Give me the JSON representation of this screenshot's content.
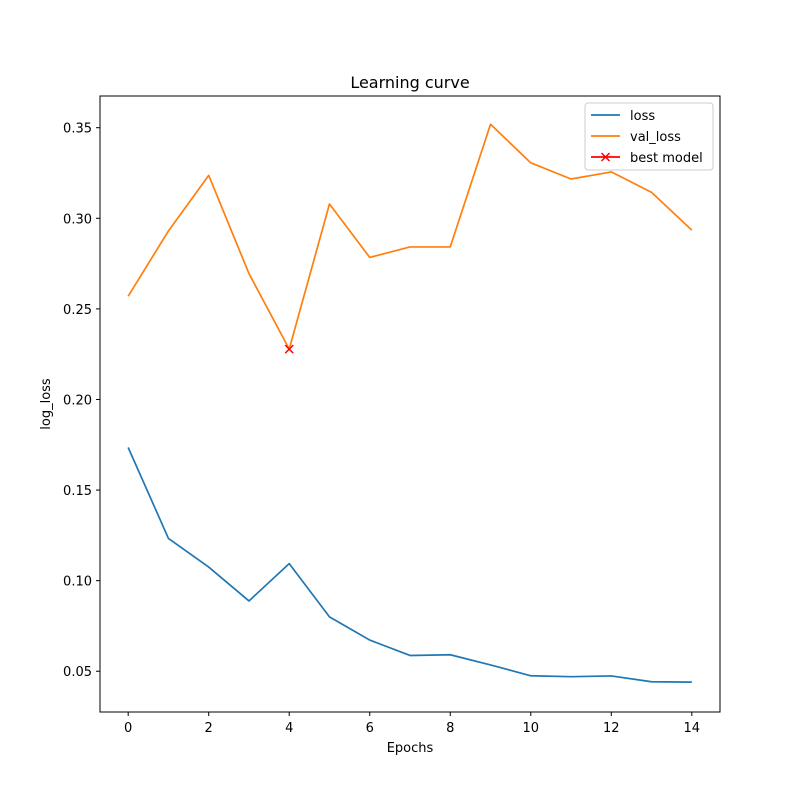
{
  "chart_data": {
    "type": "line",
    "title": "Learning curve",
    "xlabel": "Epochs",
    "ylabel": "log_loss",
    "xlim": [
      -0.7,
      14.7
    ],
    "ylim": [
      0.0275,
      0.3675
    ],
    "xticks": [
      0,
      2,
      4,
      6,
      8,
      10,
      12,
      14
    ],
    "xtick_labels": [
      "0",
      "2",
      "4",
      "6",
      "8",
      "10",
      "12",
      "14"
    ],
    "yticks": [
      0.05,
      0.1,
      0.15,
      0.2,
      0.25,
      0.3,
      0.35
    ],
    "ytick_labels": [
      "0.05",
      "0.10",
      "0.15",
      "0.20",
      "0.25",
      "0.30",
      "0.35"
    ],
    "grid": false,
    "legend_position": "top-right",
    "x": [
      0,
      1,
      2,
      3,
      4,
      5,
      6,
      7,
      8,
      9,
      10,
      11,
      12,
      13,
      14
    ],
    "series": [
      {
        "name": "loss",
        "color": "#1f77b4",
        "values": [
          0.1735,
          0.1233,
          0.1075,
          0.0888,
          0.1094,
          0.08,
          0.0672,
          0.0587,
          0.0591,
          0.0535,
          0.0475,
          0.047,
          0.0474,
          0.0442,
          0.044
        ]
      },
      {
        "name": "val_loss",
        "color": "#ff7f0e",
        "values": [
          0.257,
          0.293,
          0.3237,
          0.2695,
          0.2278,
          0.3079,
          0.2784,
          0.2842,
          0.2842,
          0.3519,
          0.3306,
          0.3217,
          0.3256,
          0.3143,
          0.2935
        ]
      }
    ],
    "markers": [
      {
        "name": "best model",
        "color": "#ff0000",
        "marker": "x",
        "x": 4,
        "y": 0.2278
      }
    ],
    "legend": [
      "loss",
      "val_loss",
      "best model"
    ]
  }
}
